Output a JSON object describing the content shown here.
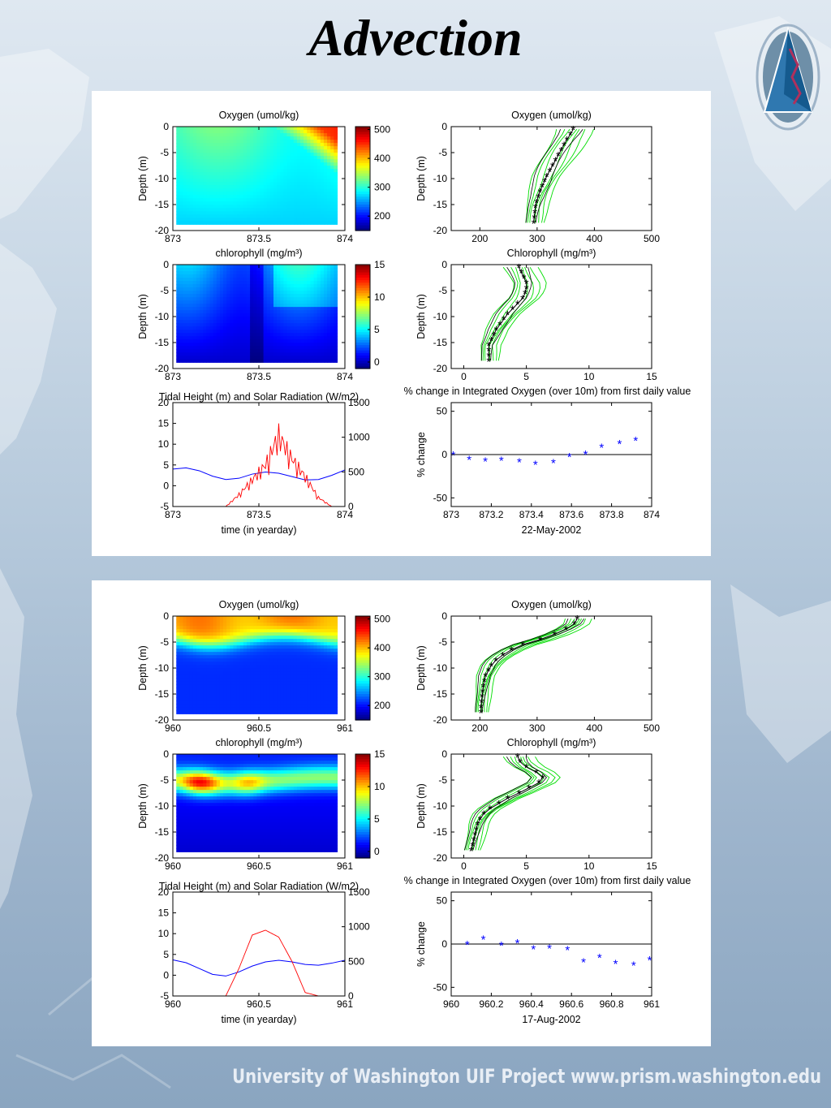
{
  "slide": {
    "title": "Advection",
    "footer": "University of Washington  UIF Project  www.prism.washington.edu",
    "colors": {
      "background_top": "#dfe8f1",
      "background_bottom": "#8aa5c0",
      "oxygen_profile_mean": "#000000",
      "profile_lines": "#00e000",
      "pct_change_marker": "#0000ff",
      "tidal_height_line": "#0000ff",
      "solar_radiation_line": "#ff0000"
    }
  },
  "panels": [
    {
      "date_label": "22-May-2002",
      "oxygen_contour": {
        "type": "heatmap",
        "title": "Oxygen (umol/kg)",
        "ylabel": "Depth (m)",
        "xticks": [
          "873",
          "873.5",
          "874"
        ],
        "yticks": [
          "0",
          "-5",
          "-10",
          "-15",
          "-20"
        ],
        "colorbar_ticks": [
          "500",
          "400",
          "300",
          "200"
        ],
        "xlim": [
          873,
          874
        ],
        "ylim": [
          -20,
          0
        ],
        "clim": [
          150,
          510
        ]
      },
      "oxygen_profile": {
        "type": "line",
        "title": "Oxygen (umol/kg)",
        "ylabel": "Depth (m)",
        "xticks": [
          "200",
          "300",
          "400",
          "500"
        ],
        "yticks": [
          "0",
          "-5",
          "-10",
          "-15",
          "-20"
        ],
        "xlim": [
          150,
          500
        ],
        "ylim": [
          -20,
          0
        ],
        "depths": [
          -0.5,
          -1.5,
          -2.5,
          -3.5,
          -4.5,
          -5.5,
          -6.5,
          -7.5,
          -8.5,
          -9.5,
          -10.5,
          -11.5,
          -12.5,
          -13.5,
          -14.5,
          -15.5,
          -16.5,
          -17.5,
          -18.5
        ],
        "mean": [
          363,
          358,
          352,
          347,
          342,
          337,
          332,
          327,
          322,
          317,
          313,
          309,
          305,
          302,
          299,
          297,
          296,
          295,
          294
        ]
      },
      "chl_contour": {
        "type": "heatmap",
        "title": "chlorophyll (mg/m³)",
        "ylabel": "Depth (m)",
        "xticks": [
          "873",
          "873.5",
          "874"
        ],
        "yticks": [
          "0",
          "-5",
          "-10",
          "-15",
          "-20"
        ],
        "colorbar_ticks": [
          "15",
          "10",
          "5",
          "0"
        ],
        "xlim": [
          873,
          874
        ],
        "ylim": [
          -20,
          0
        ],
        "clim": [
          -1,
          15
        ]
      },
      "chl_profile": {
        "type": "line",
        "title": "Chlorophyll (mg/m³)",
        "ylabel": "Depth (m)",
        "xticks": [
          "0",
          "5",
          "10",
          "15"
        ],
        "yticks": [
          "0",
          "-5",
          "-10",
          "-15",
          "-20"
        ],
        "xlim": [
          -1,
          15
        ],
        "ylim": [
          -20,
          0
        ],
        "depths": [
          -0.5,
          -1.5,
          -2.5,
          -3.5,
          -4.5,
          -5.5,
          -6.5,
          -7.5,
          -8.5,
          -9.5,
          -10.5,
          -11.5,
          -12.5,
          -13.5,
          -14.5,
          -15.5,
          -16.5,
          -17.5,
          -18.5
        ],
        "mean": [
          4.4,
          4.6,
          4.8,
          5.0,
          5.0,
          4.9,
          4.7,
          4.3,
          3.9,
          3.5,
          3.2,
          2.9,
          2.6,
          2.4,
          2.2,
          2.0,
          2.0,
          2.0,
          2.0
        ]
      },
      "tide_solar": {
        "type": "line",
        "title": "Tidal Height (m) and Solar Radiation (W/m2)",
        "xlabel": "time (in yearday)",
        "xticks": [
          "873",
          "873.5",
          "874"
        ],
        "yticks_left": [
          "20",
          "15",
          "10",
          "5",
          "0",
          "-5"
        ],
        "yticks_right": [
          "1500",
          "1000",
          "500",
          "0"
        ],
        "xlim": [
          873,
          874
        ],
        "ylim_left": [
          -5,
          20
        ],
        "ylim_right": [
          0,
          1500
        ],
        "tide_m": [
          4.0,
          4.3,
          3.6,
          2.3,
          1.5,
          1.8,
          2.8,
          3.3,
          3.0,
          2.2,
          1.4,
          1.5,
          2.5,
          3.8
        ],
        "solar_wm2": [
          0,
          0,
          0,
          0,
          0,
          200,
          450,
          700,
          1200,
          800,
          500,
          150,
          0,
          0
        ]
      },
      "pct_change": {
        "type": "scatter",
        "title": "% change in Integrated Oxygen (over 10m) from first daily value",
        "ylabel": "% change",
        "xlabel": "22-May-2002",
        "xticks": [
          "873",
          "873.2",
          "873.4",
          "873.6",
          "873.8",
          "874"
        ],
        "yticks": [
          "50",
          "0",
          "-50"
        ],
        "xlim": [
          873,
          874
        ],
        "ylim": [
          -60,
          60
        ],
        "x": [
          873.01,
          873.09,
          873.17,
          873.25,
          873.34,
          873.42,
          873.51,
          873.59,
          873.67,
          873.75,
          873.84,
          873.92
        ],
        "y": [
          0,
          -5,
          -7,
          -6,
          -8,
          -11,
          -9,
          -2,
          1,
          9,
          13,
          17
        ]
      }
    },
    {
      "date_label": "17-Aug-2002",
      "oxygen_contour": {
        "type": "heatmap",
        "title": "Oxygen (umol/kg)",
        "ylabel": "Depth (m)",
        "xticks": [
          "960",
          "960.5",
          "961"
        ],
        "yticks": [
          "0",
          "-5",
          "-10",
          "-15",
          "-20"
        ],
        "colorbar_ticks": [
          "500",
          "400",
          "300",
          "200"
        ],
        "xlim": [
          960,
          961
        ],
        "ylim": [
          -20,
          0
        ],
        "clim": [
          150,
          510
        ]
      },
      "oxygen_profile": {
        "type": "line",
        "title": "Oxygen (umol/kg)",
        "ylabel": "Depth (m)",
        "xticks": [
          "200",
          "300",
          "400",
          "500"
        ],
        "yticks": [
          "0",
          "-5",
          "-10",
          "-15",
          "-20"
        ],
        "xlim": [
          150,
          500
        ],
        "ylim": [
          -20,
          0
        ],
        "depths": [
          -0.5,
          -1.5,
          -2.5,
          -3.5,
          -4.5,
          -5.5,
          -6.5,
          -7.5,
          -8.5,
          -9.5,
          -10.5,
          -11.5,
          -12.5,
          -13.5,
          -14.5,
          -15.5,
          -16.5,
          -17.5,
          -18.5
        ],
        "mean": [
          370,
          365,
          350,
          330,
          305,
          275,
          255,
          240,
          228,
          220,
          215,
          210,
          208,
          206,
          205,
          204,
          203,
          202,
          202
        ]
      },
      "chl_contour": {
        "type": "heatmap",
        "title": "chlorophyll (mg/m³)",
        "ylabel": "Depth (m)",
        "xticks": [
          "960",
          "960.5",
          "961"
        ],
        "yticks": [
          "0",
          "-5",
          "-10",
          "-15",
          "-20"
        ],
        "colorbar_ticks": [
          "15",
          "10",
          "5",
          "0"
        ],
        "xlim": [
          960,
          961
        ],
        "ylim": [
          -20,
          0
        ],
        "clim": [
          -1,
          15
        ]
      },
      "chl_profile": {
        "type": "line",
        "title": "Chlorophyll (mg/m³)",
        "ylabel": "Depth (m)",
        "xticks": [
          "0",
          "5",
          "10",
          "15"
        ],
        "yticks": [
          "0",
          "-5",
          "-10",
          "-15",
          "-20"
        ],
        "xlim": [
          -1,
          15
        ],
        "ylim": [
          -20,
          0
        ],
        "depths": [
          -0.5,
          -1.5,
          -2.5,
          -3.5,
          -4.5,
          -5.5,
          -6.5,
          -7.5,
          -8.5,
          -9.5,
          -10.5,
          -11.5,
          -12.5,
          -13.5,
          -14.5,
          -15.5,
          -16.5,
          -17.5,
          -18.5
        ],
        "mean": [
          4.3,
          4.5,
          5.0,
          5.8,
          6.3,
          6.0,
          5.2,
          4.4,
          3.5,
          2.8,
          2.1,
          1.6,
          1.3,
          1.1,
          1.0,
          0.9,
          0.8,
          0.7,
          0.6
        ]
      },
      "tide_solar": {
        "type": "line",
        "title": "Tidal Height (m) and Solar Radiation (W/m2)",
        "xlabel": "time (in yearday)",
        "xticks": [
          "960",
          "960.5",
          "961"
        ],
        "yticks_left": [
          "20",
          "15",
          "10",
          "5",
          "0",
          "-5"
        ],
        "yticks_right": [
          "1500",
          "1000",
          "500",
          "0"
        ],
        "xlim": [
          960,
          961
        ],
        "ylim_left": [
          -5,
          20
        ],
        "ylim_right": [
          0,
          1500
        ],
        "tide_m": [
          3.7,
          3.0,
          1.6,
          0.2,
          -0.2,
          0.8,
          2.2,
          3.2,
          3.6,
          3.2,
          2.6,
          2.4,
          2.9,
          3.6
        ],
        "solar_wm2": [
          0,
          0,
          0,
          0,
          0,
          400,
          880,
          950,
          850,
          500,
          50,
          0,
          0,
          0
        ]
      },
      "pct_change": {
        "type": "scatter",
        "title": "% change in Integrated Oxygen (over 10m) from first daily value",
        "ylabel": "% change",
        "xlabel": "17-Aug-2002",
        "xticks": [
          "960",
          "960.2",
          "960.4",
          "960.6",
          "960.8",
          "961"
        ],
        "yticks": [
          "50",
          "0",
          "-50"
        ],
        "xlim": [
          960,
          961
        ],
        "ylim": [
          -60,
          60
        ],
        "x": [
          960.08,
          960.16,
          960.25,
          960.33,
          960.41,
          960.49,
          960.58,
          960.66,
          960.74,
          960.82,
          960.91,
          960.99
        ],
        "y": [
          0,
          6,
          -1,
          2,
          -5,
          -4,
          -6,
          -20,
          -15,
          -22,
          -24,
          -18
        ]
      }
    }
  ]
}
